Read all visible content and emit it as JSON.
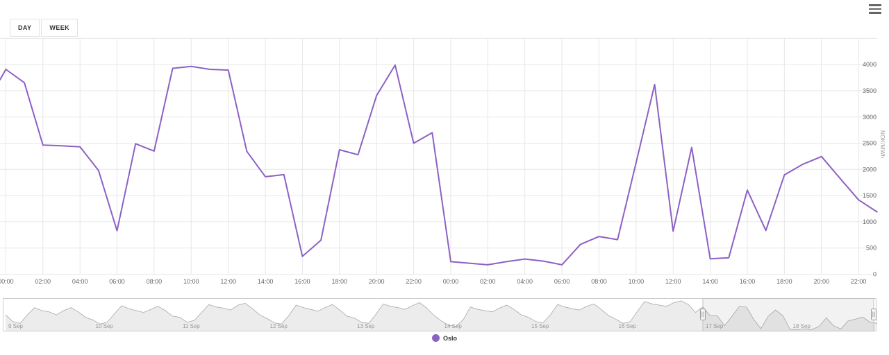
{
  "toolbar": {
    "buttons": [
      {
        "label": "DAY"
      },
      {
        "label": "WEEK"
      }
    ]
  },
  "export_menu": {
    "icon": "hamburger-icon"
  },
  "colors": {
    "series": "#8c61c4",
    "grid": "#e7e7e7",
    "axis_label": "#666666",
    "nav_label": "#999999",
    "nav_fill": "#ececec",
    "nav_outline": "#a8a8a8"
  },
  "chart_data": {
    "type": "line",
    "y_axis_title": "NOK/MWh",
    "y_ticks": [
      0,
      500,
      1000,
      1500,
      2000,
      2500,
      3000,
      3500,
      4000
    ],
    "ylim": [
      0,
      4500
    ],
    "x_tick_labels": [
      "00:00",
      "02:00",
      "04:00",
      "06:00",
      "08:00",
      "10:00",
      "12:00",
      "14:00",
      "16:00",
      "18:00",
      "20:00",
      "22:00"
    ],
    "x_tick_repeat": 2,
    "x_hours_span": 48,
    "series": [
      {
        "name": "Oslo",
        "color": "#8c61c4",
        "unit": "NOK/MWh",
        "lead_in_value": 3710,
        "values": [
          3910,
          3655,
          2465,
          2450,
          2430,
          1980,
          830,
          2490,
          2350,
          3930,
          3965,
          3910,
          3895,
          2345,
          1860,
          1900,
          340,
          650,
          2375,
          2280,
          3410,
          3990,
          2500,
          2700,
          240,
          210,
          180,
          240,
          290,
          250,
          180,
          570,
          720,
          660,
          2130,
          3620,
          820,
          2420,
          295,
          315,
          1605,
          835,
          1895,
          2100,
          2245,
          1830,
          1420,
          1190
        ]
      }
    ]
  },
  "navigator": {
    "day_labels": [
      "9 Sep",
      "10 Sep",
      "11 Sep",
      "12 Sep",
      "13 Sep",
      "14 Sep",
      "15 Sep",
      "16 Sep",
      "17 Sep",
      "18 Sep"
    ],
    "window_start_index": 96,
    "window_end_index": 120,
    "values": [
      2600,
      1500,
      1200,
      2600,
      3800,
      3300,
      3100,
      2600,
      3300,
      3800,
      3100,
      2200,
      1800,
      1100,
      1400,
      2800,
      4100,
      3600,
      3300,
      3000,
      3500,
      4000,
      3300,
      2400,
      2200,
      1400,
      1700,
      3000,
      4300,
      3900,
      3700,
      3400,
      4200,
      4500,
      3600,
      2600,
      2000,
      1300,
      1100,
      2500,
      4200,
      3800,
      3500,
      3200,
      3800,
      4300,
      3400,
      2400,
      2100,
      1400,
      1200,
      2700,
      4400,
      4000,
      3800,
      3500,
      4100,
      4600,
      3700,
      2500,
      1600,
      900,
      700,
      1800,
      3900,
      3500,
      3300,
      3100,
      3700,
      4200,
      3500,
      2600,
      2200,
      1500,
      1300,
      2600,
      4300,
      3900,
      3600,
      3400,
      4000,
      4400,
      3500,
      2500,
      1900,
      1200,
      1500,
      3200,
      4800,
      4400,
      4200,
      4000,
      4600,
      4900,
      4300,
      3000,
      3910,
      2465,
      2430,
      830,
      2350,
      3965,
      3895,
      1860,
      340,
      2375,
      3410,
      2500,
      240,
      180,
      290,
      180,
      720,
      2130,
      820,
      295,
      1605,
      1895,
      2245,
      1420,
      1190
    ]
  },
  "legend": {
    "items": [
      {
        "label": "Oslo",
        "color": "#8c61c4"
      }
    ]
  }
}
